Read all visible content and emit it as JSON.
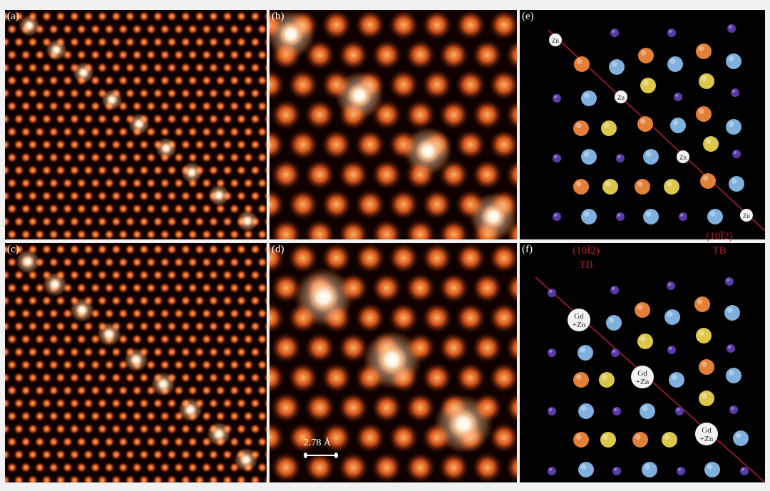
{
  "panels": {
    "a": {
      "label": "(a)"
    },
    "b": {
      "label": "(b)"
    },
    "c": {
      "label": "(c)"
    },
    "d": {
      "label": "(d)"
    },
    "e": {
      "label": "(e)"
    },
    "f": {
      "label": "(f)"
    }
  },
  "scale_bar": {
    "label": "2.78 Å"
  },
  "twin_boundary_labels": [
    {
      "plane": "(10Ī2)",
      "type": "TB"
    },
    {
      "plane": "(10Ī2)",
      "type": "TB"
    }
  ],
  "atom_labels": {
    "zn": "Zn",
    "gd": "Gd",
    "plus_zn": "+Zn"
  },
  "colors": {
    "panel_background": "#000000",
    "boundary_line": "#8a1a22",
    "atom_orange": "#e2803a",
    "atom_blue": "#7fb0de",
    "atom_yellow": "#dcc74a",
    "atom_purple": "#5b3aa8",
    "atom_white": "#f2f2f2",
    "tb_text": "#b2202a"
  }
}
